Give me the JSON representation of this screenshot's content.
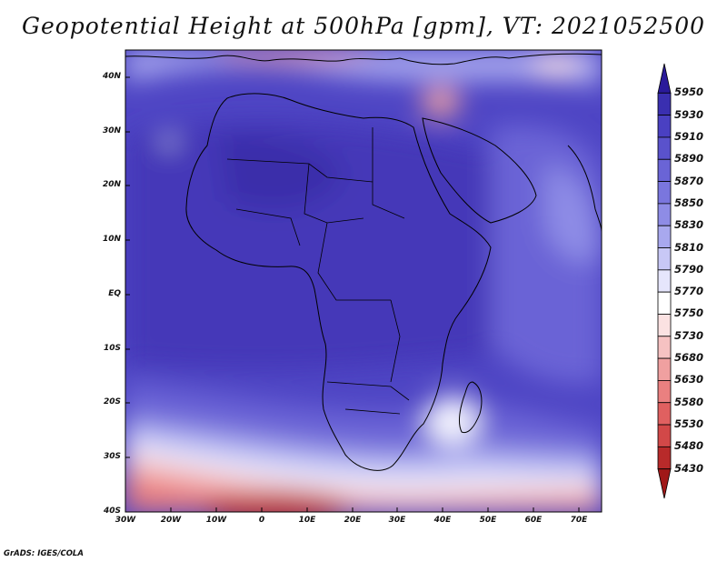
{
  "title": "Geopotential Height at 500hPa [gpm], VT: 2021052500",
  "credit": "GrADS: IGES/COLA",
  "map": {
    "lon_range": [
      -30,
      75
    ],
    "lat_range": [
      -40,
      45
    ],
    "x_ticks": [
      "30W",
      "20W",
      "10W",
      "0",
      "10E",
      "20E",
      "30E",
      "40E",
      "50E",
      "60E",
      "70E"
    ],
    "y_ticks": [
      "40N",
      "30N",
      "20N",
      "10N",
      "EQ",
      "10S",
      "20S",
      "30S",
      "40S"
    ]
  },
  "colorbar": {
    "levels": [
      "5950",
      "5930",
      "5910",
      "5890",
      "5870",
      "5850",
      "5830",
      "5810",
      "5790",
      "5770",
      "5750",
      "5730",
      "5680",
      "5630",
      "5580",
      "5530",
      "5480",
      "5430"
    ],
    "colors": [
      "#2a1a9a",
      "#3a2fb0",
      "#4a40c2",
      "#5a52cc",
      "#6a64d6",
      "#7a76de",
      "#8e8ce6",
      "#a8a8ee",
      "#c8c8f6",
      "#e6e6fc",
      "#ffffff",
      "#fbe2e2",
      "#f6c2c2",
      "#f0a0a0",
      "#ea8080",
      "#e06060",
      "#d24848",
      "#b82a2a",
      "#a01818"
    ]
  }
}
